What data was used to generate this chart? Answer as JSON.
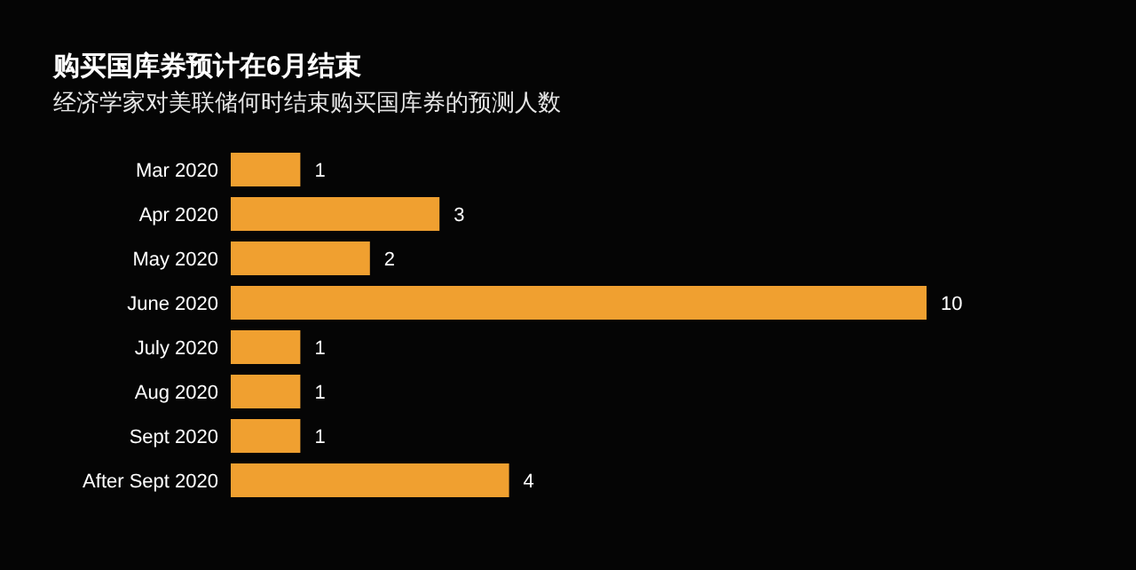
{
  "chart_data": {
    "type": "bar",
    "orientation": "horizontal",
    "title": "购买国库券预计在6月结束",
    "subtitle": "经济学家对美联储何时结束购买国库券的预测人数",
    "categories": [
      "Mar 2020",
      "Apr 2020",
      "May 2020",
      "June 2020",
      "July 2020",
      "Aug 2020",
      "Sept 2020",
      "After Sept 2020"
    ],
    "values": [
      1,
      3,
      2,
      10,
      1,
      1,
      1,
      4
    ],
    "color": "#f0a030",
    "data_labels": true
  }
}
